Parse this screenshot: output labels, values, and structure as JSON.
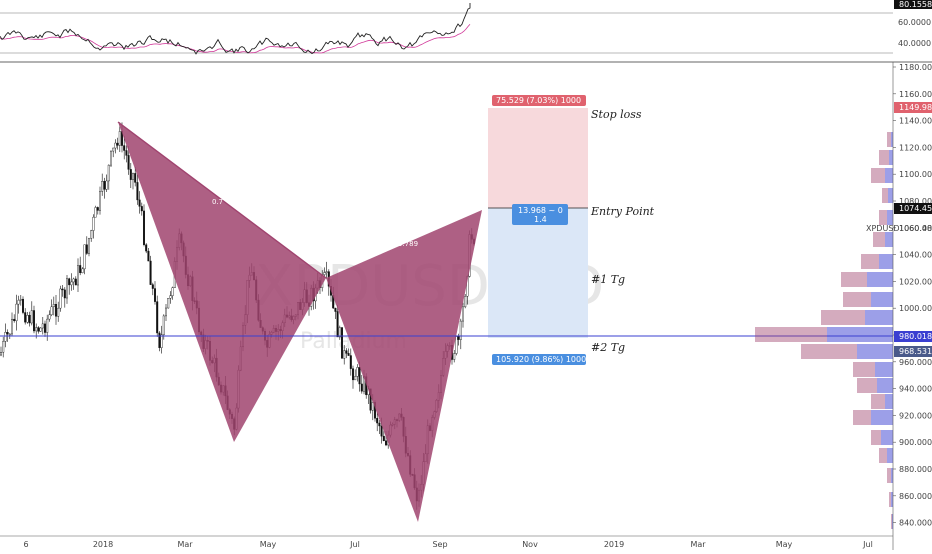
{
  "symbol": "XPDUSD",
  "watermark": {
    "symbol": "XPDUSD, 1D",
    "name": "Palladium"
  },
  "rsi_panel": {
    "current_value": "80.1558",
    "levels": [
      "60.0000",
      "40.0000"
    ]
  },
  "price_axis": {
    "ticks": [
      "1180.000",
      "1160.000",
      "1140.000",
      "1120.000",
      "1100.000",
      "1080.000",
      "1060.000",
      "1040.000",
      "1020.000",
      "1000.000",
      "980.000",
      "960.000",
      "940.000",
      "920.000",
      "900.000",
      "880.000",
      "860.000",
      "840.000"
    ],
    "stop_price_label": "1149.980",
    "entry_price_label": "1074.451",
    "last_price_label": "1060.483",
    "hline_price_label": "980.018",
    "lower_price_label": "968.531"
  },
  "time_axis": {
    "labels": [
      "6",
      "2018",
      "Mar",
      "May",
      "Jul",
      "Sep",
      "Nov",
      "2019",
      "Mar",
      "May",
      "Jul"
    ]
  },
  "position_tool": {
    "stop_badge": "75.529 (7.03%) 1000",
    "entry_badge_line1": "13.968 ~ 0",
    "entry_badge_line2": "1.4",
    "target_badge": "105.920 (9.86%) 1000"
  },
  "annotations": {
    "stop_loss": "Stop loss",
    "entry_point": "Entry Point",
    "target1": "#1 Tg",
    "target2": "#2 Tg"
  },
  "pattern_ratios": {
    "left": "0.7",
    "right": "0.789"
  },
  "colors": {
    "pattern_fill": "#a0446f",
    "stop_zone": "#f7d9dc",
    "target_zone": "#dbe7f7",
    "stop_badge": "#e0626e",
    "target_badge": "#4a8fe0",
    "hline": "#3a3fd1",
    "rsi_line": "#222222",
    "rsi_ma": "#d13a9a"
  }
}
